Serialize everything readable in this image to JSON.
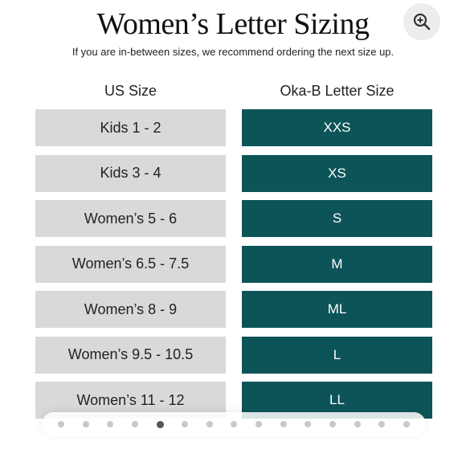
{
  "header": {
    "title": "Women’s Letter Sizing",
    "subtitle": "If you are in-between sizes, we recommend ordering the next size up."
  },
  "zoom": {
    "icon": "zoom-in-icon"
  },
  "table": {
    "columns": [
      "US Size",
      "Oka-B Letter Size"
    ],
    "rows": [
      {
        "us": "Kids 1 - 2",
        "oka": "XXS"
      },
      {
        "us": "Kids 3 - 4",
        "oka": "XS"
      },
      {
        "us": "Women’s 5 - 6",
        "oka": "S"
      },
      {
        "us": "Women’s 6.5 - 7.5",
        "oka": "M"
      },
      {
        "us": "Women’s 8 - 9",
        "oka": "ML"
      },
      {
        "us": "Women’s 9.5 - 10.5",
        "oka": "L"
      },
      {
        "us": "Women’s 11 - 12",
        "oka": "LL"
      }
    ]
  },
  "carousel": {
    "total": 15,
    "active_index": 4
  },
  "colors": {
    "accent": "#0d5458",
    "cell_gray": "#d9d9d9"
  }
}
